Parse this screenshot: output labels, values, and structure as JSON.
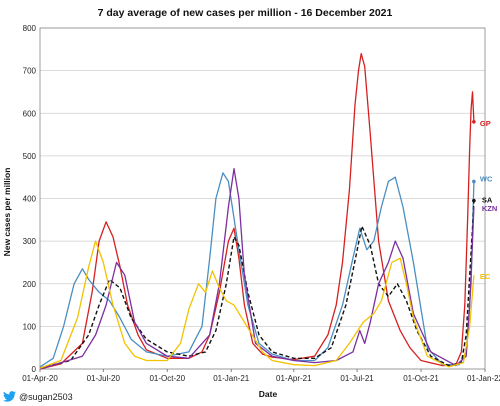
{
  "chart_data": {
    "type": "line",
    "title": "7 day average of new cases per million - 16 December 2021",
    "xlabel": "Date",
    "ylabel": "New cases per million",
    "ylim": [
      0,
      800
    ],
    "yticks": [
      0,
      100,
      200,
      300,
      400,
      500,
      600,
      700,
      800
    ],
    "xlim": [
      "2020-04-01",
      "2022-01-01"
    ],
    "xticks": [
      "2020-04-01",
      "2020-07-01",
      "2020-10-01",
      "2021-01-01",
      "2021-04-01",
      "2021-07-01",
      "2021-10-01",
      "2022-01-01"
    ],
    "xtick_labels": [
      "01-Apr-20",
      "01-Jul-20",
      "01-Oct-20",
      "01-Jan-21",
      "01-Apr-21",
      "01-Jul-21",
      "01-Oct-21",
      "01-Jan-22"
    ],
    "grid": true,
    "legend": "end-of-line labels",
    "series": [
      {
        "name": "GP",
        "color": "#d62020",
        "dashed": false,
        "end_marker": true,
        "x": [
          "2020-04-01",
          "2020-05-01",
          "2020-06-01",
          "2020-06-15",
          "2020-06-25",
          "2020-07-05",
          "2020-07-15",
          "2020-07-25",
          "2020-08-05",
          "2020-08-20",
          "2020-09-01",
          "2020-10-01",
          "2020-11-01",
          "2020-11-20",
          "2020-12-01",
          "2020-12-15",
          "2020-12-28",
          "2021-01-05",
          "2021-01-12",
          "2021-01-20",
          "2021-02-01",
          "2021-02-15",
          "2021-03-01",
          "2021-04-01",
          "2021-05-01",
          "2021-05-20",
          "2021-06-01",
          "2021-06-10",
          "2021-06-20",
          "2021-06-28",
          "2021-07-03",
          "2021-07-07",
          "2021-07-12",
          "2021-07-20",
          "2021-08-01",
          "2021-08-15",
          "2021-09-01",
          "2021-09-15",
          "2021-10-01",
          "2021-11-01",
          "2021-11-20",
          "2021-11-28",
          "2021-12-03",
          "2021-12-07",
          "2021-12-10",
          "2021-12-12",
          "2021-12-14",
          "2021-12-16"
        ],
        "y": [
          0,
          12,
          60,
          180,
          300,
          345,
          310,
          240,
          150,
          80,
          45,
          25,
          25,
          40,
          80,
          180,
          300,
          330,
          260,
          150,
          60,
          35,
          28,
          22,
          30,
          80,
          150,
          250,
          420,
          620,
          700,
          740,
          710,
          550,
          300,
          160,
          90,
          50,
          20,
          8,
          10,
          40,
          150,
          350,
          520,
          610,
          650,
          580
        ]
      },
      {
        "name": "WC",
        "color": "#4a8fc2",
        "dashed": false,
        "end_marker": true,
        "x": [
          "2020-04-01",
          "2020-04-20",
          "2020-05-05",
          "2020-05-20",
          "2020-06-01",
          "2020-06-10",
          "2020-06-25",
          "2020-07-10",
          "2020-07-25",
          "2020-08-10",
          "2020-09-01",
          "2020-10-01",
          "2020-11-01",
          "2020-11-20",
          "2020-12-01",
          "2020-12-10",
          "2020-12-20",
          "2020-12-28",
          "2021-01-10",
          "2021-01-25",
          "2021-02-10",
          "2021-03-01",
          "2021-04-01",
          "2021-05-01",
          "2021-05-20",
          "2021-06-10",
          "2021-06-25",
          "2021-07-05",
          "2021-07-15",
          "2021-07-25",
          "2021-08-05",
          "2021-08-15",
          "2021-08-25",
          "2021-09-05",
          "2021-09-20",
          "2021-10-10",
          "2021-11-01",
          "2021-11-25",
          "2021-12-05",
          "2021-12-12",
          "2021-12-16"
        ],
        "y": [
          5,
          25,
          100,
          200,
          235,
          210,
          180,
          160,
          120,
          70,
          40,
          30,
          40,
          100,
          260,
          400,
          460,
          440,
          300,
          150,
          60,
          35,
          20,
          20,
          50,
          150,
          260,
          330,
          280,
          300,
          380,
          440,
          450,
          380,
          250,
          50,
          10,
          10,
          40,
          200,
          440
        ]
      },
      {
        "name": "SA",
        "color": "#111111",
        "dashed": true,
        "end_marker": true,
        "x": [
          "2020-04-01",
          "2020-05-15",
          "2020-06-10",
          "2020-06-25",
          "2020-07-10",
          "2020-07-25",
          "2020-08-10",
          "2020-09-01",
          "2020-10-01",
          "2020-11-01",
          "2020-11-25",
          "2020-12-10",
          "2020-12-25",
          "2021-01-05",
          "2021-01-12",
          "2021-01-25",
          "2021-02-10",
          "2021-03-01",
          "2021-04-01",
          "2021-05-01",
          "2021-05-25",
          "2021-06-15",
          "2021-06-30",
          "2021-07-08",
          "2021-07-20",
          "2021-08-01",
          "2021-08-15",
          "2021-08-28",
          "2021-09-10",
          "2021-09-25",
          "2021-10-15",
          "2021-11-10",
          "2021-11-28",
          "2021-12-05",
          "2021-12-10",
          "2021-12-14",
          "2021-12-16"
        ],
        "y": [
          2,
          20,
          80,
          150,
          210,
          190,
          120,
          70,
          40,
          30,
          40,
          90,
          200,
          310,
          290,
          180,
          80,
          40,
          25,
          25,
          50,
          150,
          270,
          335,
          290,
          200,
          170,
          200,
          160,
          90,
          30,
          8,
          15,
          80,
          220,
          330,
          395
        ]
      },
      {
        "name": "KZN",
        "color": "#7b2fa0",
        "dashed": false,
        "end_marker": false,
        "x": [
          "2020-04-01",
          "2020-06-01",
          "2020-06-20",
          "2020-07-05",
          "2020-07-20",
          "2020-08-01",
          "2020-08-15",
          "2020-09-01",
          "2020-10-01",
          "2020-11-01",
          "2020-12-01",
          "2020-12-15",
          "2020-12-28",
          "2021-01-05",
          "2021-01-12",
          "2021-01-20",
          "2021-02-05",
          "2021-03-01",
          "2021-04-01",
          "2021-05-01",
          "2021-06-01",
          "2021-06-25",
          "2021-07-05",
          "2021-07-12",
          "2021-07-20",
          "2021-08-01",
          "2021-08-15",
          "2021-08-25",
          "2021-09-05",
          "2021-09-20",
          "2021-10-15",
          "2021-11-20",
          "2021-12-05",
          "2021-12-10",
          "2021-12-14",
          "2021-12-16"
        ],
        "y": [
          0,
          30,
          80,
          150,
          250,
          220,
          110,
          60,
          30,
          25,
          80,
          200,
          380,
          470,
          400,
          220,
          60,
          30,
          20,
          15,
          20,
          40,
          90,
          60,
          110,
          200,
          250,
          300,
          260,
          130,
          40,
          8,
          30,
          150,
          300,
          380
        ]
      },
      {
        "name": "EC",
        "color": "#f2c200",
        "dashed": false,
        "end_marker": false,
        "x": [
          "2020-04-01",
          "2020-05-01",
          "2020-05-25",
          "2020-06-10",
          "2020-06-20",
          "2020-07-01",
          "2020-07-15",
          "2020-08-01",
          "2020-08-15",
          "2020-09-01",
          "2020-10-01",
          "2020-10-20",
          "2020-11-01",
          "2020-11-15",
          "2020-11-25",
          "2020-12-05",
          "2020-12-15",
          "2020-12-25",
          "2021-01-05",
          "2021-01-20",
          "2021-02-15",
          "2021-03-01",
          "2021-04-01",
          "2021-05-01",
          "2021-06-01",
          "2021-06-20",
          "2021-07-10",
          "2021-07-25",
          "2021-08-05",
          "2021-08-20",
          "2021-09-01",
          "2021-09-10",
          "2021-09-20",
          "2021-10-10",
          "2021-11-10",
          "2021-12-01",
          "2021-12-10",
          "2021-12-16"
        ],
        "y": [
          2,
          20,
          120,
          240,
          300,
          250,
          150,
          60,
          30,
          20,
          20,
          60,
          140,
          200,
          180,
          230,
          190,
          160,
          150,
          110,
          40,
          20,
          10,
          8,
          20,
          60,
          110,
          130,
          160,
          250,
          260,
          200,
          120,
          30,
          5,
          15,
          100,
          220
        ]
      }
    ]
  },
  "footer": {
    "twitter_icon": "twitter-bird-icon",
    "handle": "@sugan2503"
  }
}
